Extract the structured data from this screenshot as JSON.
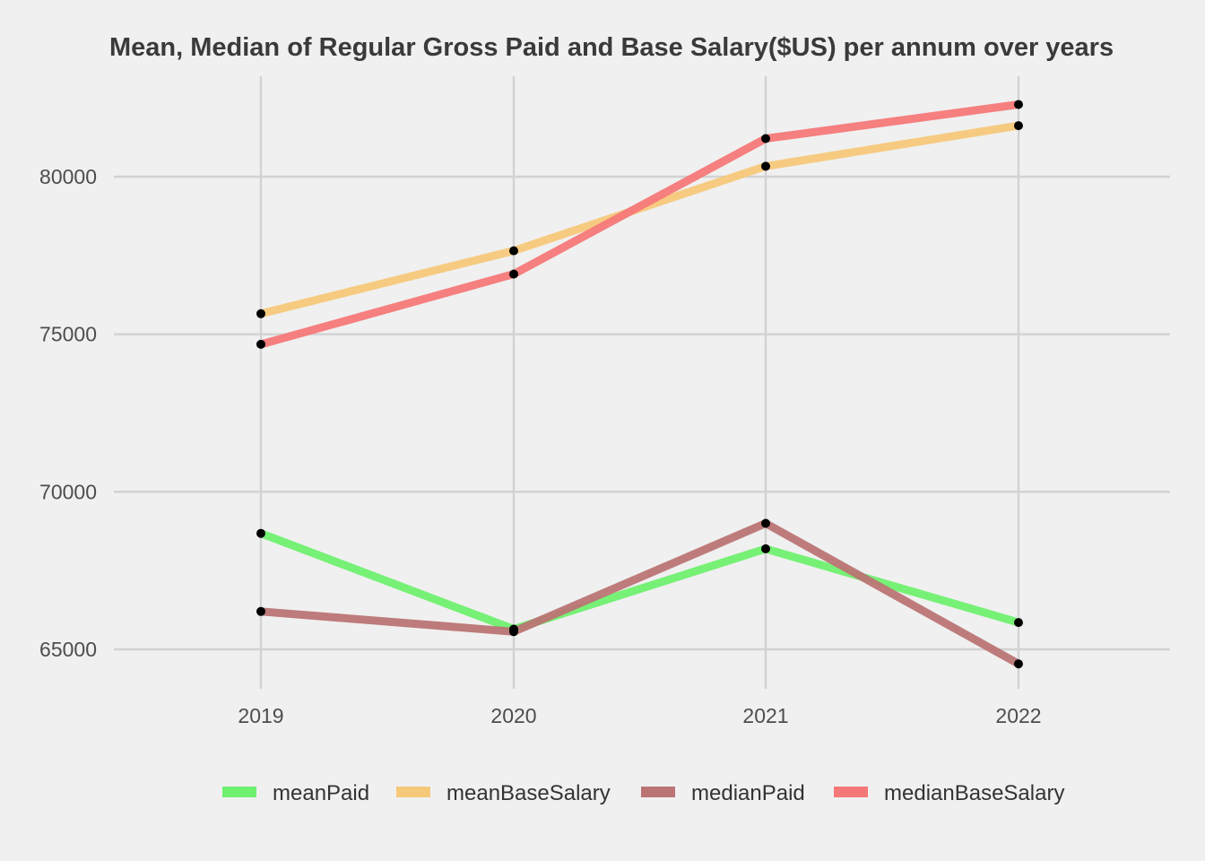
{
  "chart_data": {
    "type": "line",
    "title": "Mean, Median of Regular Gross Paid and Base Salary($US) per annum over years",
    "xlabel": "",
    "ylabel": "",
    "x": [
      "2019",
      "2020",
      "2021",
      "2022"
    ],
    "ylim": [
      63600,
      83200
    ],
    "y_ticks": [
      {
        "value": 65000,
        "label": "65000"
      },
      {
        "value": 70000,
        "label": "70000"
      },
      {
        "value": 75000,
        "label": "75000"
      },
      {
        "value": 80000,
        "label": "80000"
      }
    ],
    "grid": true,
    "legend_position": "bottom",
    "series": [
      {
        "name": "meanPaid",
        "color": "#6ff06f",
        "values": [
          68680,
          65640,
          68190,
          65850
        ]
      },
      {
        "name": "meanBaseSalary",
        "color": "#f5c87a",
        "values": [
          75650,
          77650,
          80330,
          81620
        ]
      },
      {
        "name": "medianPaid",
        "color": "#ba7474",
        "values": [
          66200,
          65560,
          69000,
          64540
        ]
      },
      {
        "name": "medianBaseSalary",
        "color": "#f57878",
        "values": [
          74680,
          76910,
          81210,
          82290
        ]
      }
    ]
  }
}
